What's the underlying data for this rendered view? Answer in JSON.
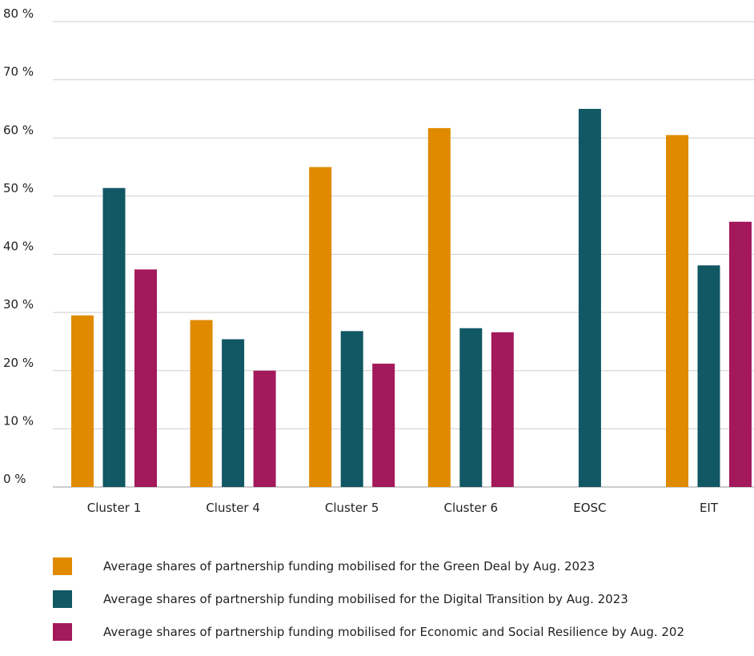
{
  "chart_data": {
    "type": "bar",
    "categories": [
      "Cluster 1",
      "Cluster 4",
      "Cluster 5",
      "Cluster 6",
      "EOSC",
      "EIT"
    ],
    "series": [
      {
        "name": "Average shares of partnership funding mobilised for the Green Deal by Aug. 2023",
        "color": "#e08a00",
        "values": [
          29.5,
          28.7,
          55.0,
          61.7,
          null,
          60.5
        ]
      },
      {
        "name": "Average shares of partnership funding mobilised for the Digital Transition by Aug. 2023",
        "color": "#115764",
        "values": [
          51.4,
          25.4,
          26.8,
          27.3,
          65.0,
          38.1
        ]
      },
      {
        "name": "Average shares of partnership funding mobilised for Economic and Social Resilience by Aug. 202",
        "color": "#a3195b",
        "values": [
          37.4,
          20.0,
          21.2,
          26.6,
          null,
          45.6
        ]
      }
    ],
    "yticks": [
      "0 %",
      "10 %",
      "20 %",
      "30 %",
      "40 %",
      "50 %",
      "60 %",
      "70 %",
      "80 %"
    ],
    "ylim": [
      0,
      80
    ],
    "grid": true,
    "legend_position": "bottom"
  }
}
